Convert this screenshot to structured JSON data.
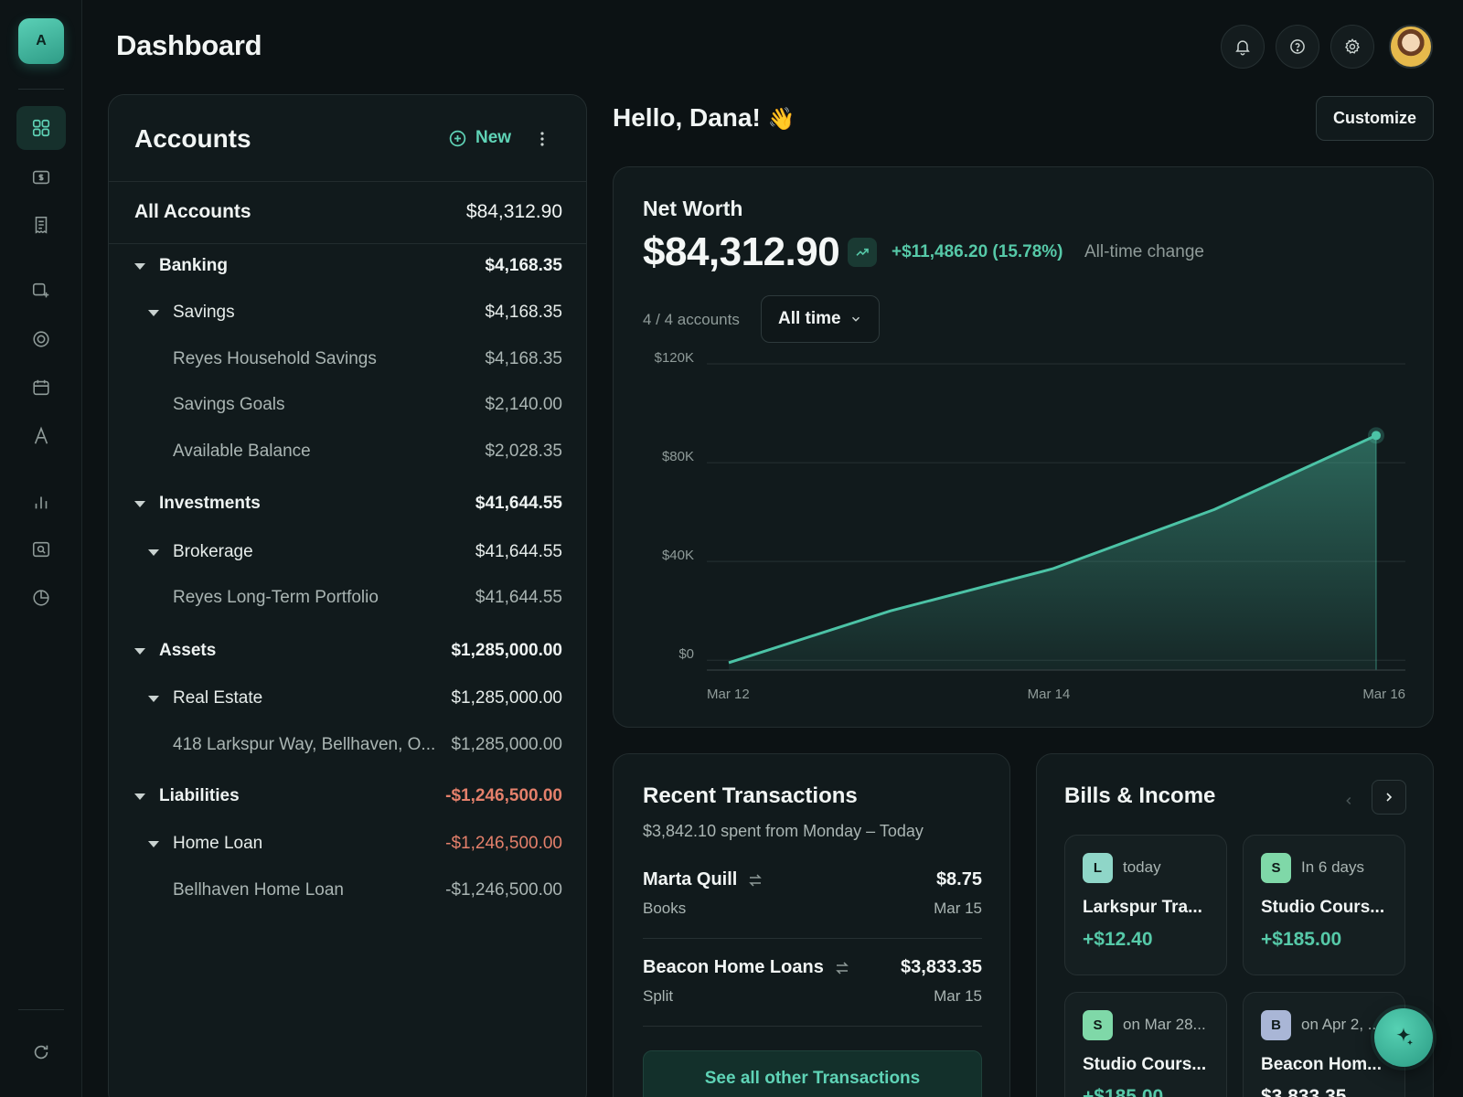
{
  "app": {
    "logo_text": "A",
    "page_title": "Dashboard"
  },
  "sidebar": {
    "items": [
      {
        "icon": "grid-icon",
        "active": true
      },
      {
        "icon": "dollar-card-icon"
      },
      {
        "icon": "receipt-icon"
      },
      {
        "icon": "tag-icon"
      },
      {
        "icon": "target-icon"
      },
      {
        "icon": "calendar-icon"
      },
      {
        "icon": "letter-a-icon"
      },
      {
        "icon": "bar-chart-icon"
      },
      {
        "icon": "search-card-icon"
      },
      {
        "icon": "pie-chart-icon"
      }
    ],
    "bottom_icon": "refresh-icon"
  },
  "header": {
    "icons": [
      "bell-icon",
      "help-icon",
      "settings-icon"
    ],
    "avatar": "user-avatar"
  },
  "accounts": {
    "title": "Accounts",
    "new_label": "New",
    "all_label": "All Accounts",
    "all_value": "$84,312.90",
    "rows": [
      {
        "level": 1,
        "name": "Banking",
        "value": "$4,168.35"
      },
      {
        "level": 2,
        "name": "Savings",
        "value": "$4,168.35"
      },
      {
        "level": 3,
        "name": "Reyes Household Savings",
        "value": "$4,168.35"
      },
      {
        "level": 3,
        "name": "Savings Goals",
        "value": "$2,140.00"
      },
      {
        "level": 3,
        "name": "Available Balance",
        "value": "$2,028.35"
      },
      {
        "level": 1,
        "name": "Investments",
        "value": "$41,644.55"
      },
      {
        "level": 2,
        "name": "Brokerage",
        "value": "$41,644.55"
      },
      {
        "level": 3,
        "name": "Reyes Long-Term Portfolio",
        "value": "$41,644.55"
      },
      {
        "level": 1,
        "name": "Assets",
        "value": "$1,285,000.00"
      },
      {
        "level": 2,
        "name": "Real Estate",
        "value": "$1,285,000.00"
      },
      {
        "level": 3,
        "name": "418 Larkspur Way, Bellhaven, O...",
        "value": "$1,285,000.00"
      },
      {
        "level": 1,
        "name": "Liabilities",
        "value": "-$1,246,500.00",
        "negative": true
      },
      {
        "level": 2,
        "name": "Home Loan",
        "value": "-$1,246,500.00",
        "negative": true
      },
      {
        "level": 3,
        "name": "Bellhaven Home Loan",
        "value": "-$1,246,500.00"
      }
    ]
  },
  "greeting": {
    "text": "Hello, Dana!",
    "emoji": "👋",
    "customize_label": "Customize"
  },
  "net_worth": {
    "label": "Net Worth",
    "value": "$84,312.90",
    "change": "+$11,486.20 (15.78%)",
    "change_label": "All-time change",
    "accounts_count": "4 / 4 accounts",
    "range_select": "All time"
  },
  "chart_data": {
    "type": "area",
    "title": "",
    "x": [
      "Mar 12",
      "Mar 13",
      "Mar 14",
      "Mar 15",
      "Mar 16"
    ],
    "x_tick_labels": [
      "Mar 12",
      "Mar 14",
      "Mar 16"
    ],
    "series": [
      {
        "values": [
          -1000,
          20000,
          37000,
          61000,
          91000
        ]
      }
    ],
    "y_tick_labels": [
      "$120K",
      "$80K",
      "$40K",
      "$0"
    ],
    "y_ticks": [
      120000,
      80000,
      40000,
      0
    ],
    "ylim": [
      -4000,
      120000
    ],
    "grid": true,
    "color": "#4cc3a6"
  },
  "transactions": {
    "title": "Recent Transactions",
    "subtitle": "$3,842.10 spent from Monday – Today",
    "items": [
      {
        "name": "Marta Quill",
        "amount": "$8.75",
        "category": "Books",
        "date": "Mar 15"
      },
      {
        "name": "Beacon Home Loans",
        "amount": "$3,833.35",
        "category": "Split",
        "date": "Mar 15"
      }
    ],
    "see_all_label": "See all other Transactions"
  },
  "bills": {
    "title": "Bills & Income",
    "cards": [
      {
        "badge": "L",
        "badge_color": "#8fd6c8",
        "when": "today",
        "name": "Larkspur Tra...",
        "amount": "+$12.40",
        "positive": true
      },
      {
        "badge": "S",
        "badge_color": "#7fd8a8",
        "when": "In 6 days",
        "name": "Studio Cours...",
        "amount": "+$185.00",
        "positive": true
      },
      {
        "badge": "S",
        "badge_color": "#7fd8a8",
        "when": "on Mar 28...",
        "name": "Studio Cours...",
        "amount": "+$185.00",
        "positive": true
      },
      {
        "badge": "B",
        "badge_color": "#a9b6d6",
        "when": "on Apr 2, ...",
        "name": "Beacon Hom...",
        "amount": "$3,833.35",
        "positive": false
      }
    ]
  },
  "fab": {
    "icon": "sparkle-icon"
  }
}
